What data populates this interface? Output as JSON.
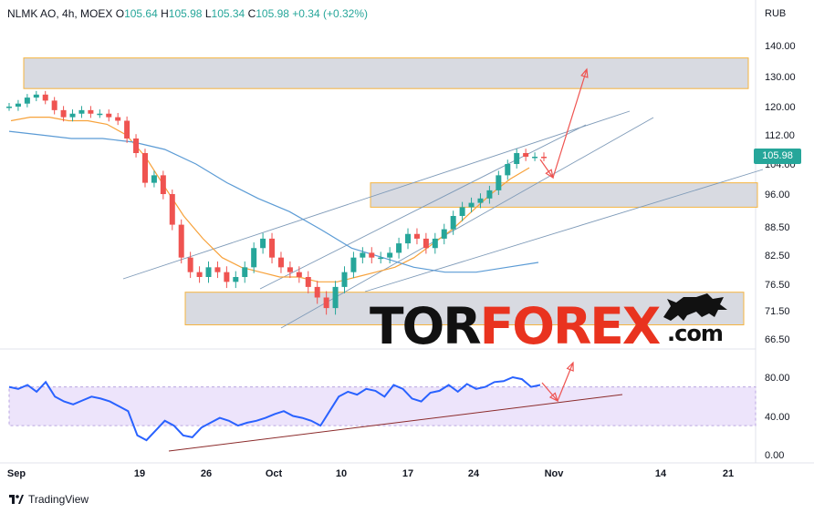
{
  "header": {
    "symbol": "NLMK AO, 4h, MOEX",
    "open_label": "O",
    "open": "105.64",
    "high_label": "H",
    "high": "105.98",
    "low_label": "L",
    "low": "105.34",
    "close_label": "C",
    "close": "105.98",
    "change": "+0.34 (+0.32%)"
  },
  "currency": "RUB",
  "last_price": "105.98",
  "brand": {
    "name": "TradingView",
    "icon": "tradingview-logo-icon"
  },
  "watermark": {
    "part1": "TOR",
    "part2": "FOREX",
    "suffix": ".com",
    "icon": "bull-icon"
  },
  "colors": {
    "up": "#26a69a",
    "down": "#ef5350",
    "rsi": "#2962ff",
    "ma_fast": "#f7a23b",
    "ma_slow": "#5b9bd5",
    "accent": "#e9331f"
  },
  "chart_data": [
    {
      "type": "candlestick",
      "price_axis_ticks": [
        "140.00",
        "130.00",
        "120.00",
        "112.00",
        "104.00",
        "96.00",
        "88.50",
        "82.50",
        "76.50",
        "71.50",
        "66.50"
      ],
      "x_tick_labels": [
        "Sep",
        "19",
        "26",
        "Oct",
        "10",
        "17",
        "24",
        "Nov",
        "14",
        "21"
      ],
      "ohlc_close_approx": [
        120,
        121,
        123,
        124,
        122,
        119,
        117,
        118,
        119,
        118,
        118,
        117,
        116,
        111,
        107,
        99,
        101,
        96,
        89,
        82,
        79,
        78,
        80,
        79,
        77,
        78,
        80,
        84,
        86,
        82,
        80,
        79,
        78,
        76,
        74,
        72,
        76,
        79,
        82,
        83,
        82,
        82,
        83,
        85,
        87,
        86,
        84,
        86,
        88,
        91,
        93,
        94,
        95,
        97,
        101,
        104,
        107,
        106,
        106,
        105.98
      ],
      "moving_averages": [
        {
          "color": "orange",
          "values_approx": [
            116,
            117,
            117,
            116,
            116,
            115,
            112,
            106,
            98,
            91,
            86,
            82,
            80,
            79,
            78,
            78,
            77,
            77,
            78,
            79,
            80,
            82,
            85,
            88,
            92,
            96,
            100,
            103
          ]
        },
        {
          "color": "blue",
          "values_approx": [
            113,
            112,
            111,
            111,
            110,
            108,
            104,
            99,
            95,
            92,
            88,
            84,
            82,
            80,
            79,
            79,
            80,
            81
          ]
        }
      ],
      "zones": [
        {
          "from": 126,
          "to": 136
        },
        {
          "from": 93,
          "to": 99
        },
        {
          "from": 69,
          "to": 75
        }
      ]
    },
    {
      "type": "line",
      "indicator": "RSI",
      "axis_ticks": [
        "80.00",
        "40.00",
        "0.00"
      ],
      "band": [
        30,
        70
      ],
      "values_approx": [
        70,
        68,
        72,
        65,
        75,
        60,
        55,
        52,
        56,
        60,
        58,
        55,
        50,
        45,
        20,
        15,
        25,
        35,
        30,
        20,
        18,
        28,
        33,
        38,
        35,
        30,
        33,
        35,
        38,
        42,
        45,
        40,
        38,
        35,
        30,
        45,
        60,
        65,
        62,
        68,
        66,
        60,
        72,
        68,
        58,
        55,
        64,
        66,
        72,
        65,
        73,
        68,
        70,
        75,
        76,
        80,
        78,
        70,
        72
      ]
    }
  ]
}
